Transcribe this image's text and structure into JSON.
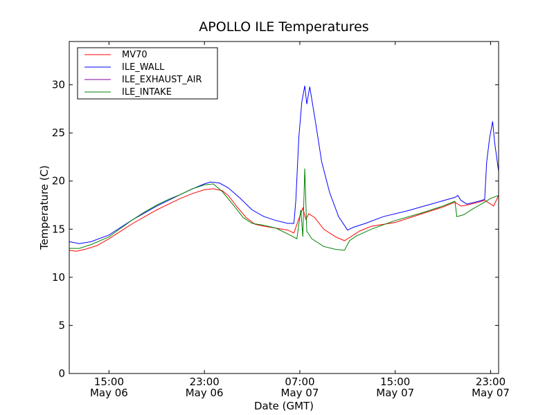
{
  "chart_data": {
    "type": "line",
    "title": "APOLLO ILE Temperatures",
    "xlabel": "Date (GMT)",
    "ylabel": "Temperature (C)",
    "ylim": [
      0,
      34.5
    ],
    "xlim": [
      "2013-05-06 11:40",
      "2013-05-07 23:40"
    ],
    "y_ticks": [
      0,
      5,
      10,
      15,
      20,
      25,
      30
    ],
    "x_ticks": [
      {
        "time": "2013-05-06 15:00",
        "label_time": "15:00",
        "label_date": "May 06"
      },
      {
        "time": "2013-05-06 23:00",
        "label_time": "23:00",
        "label_date": "May 06"
      },
      {
        "time": "2013-05-07 07:00",
        "label_time": "07:00",
        "label_date": "May 07"
      },
      {
        "time": "2013-05-07 15:00",
        "label_time": "15:00",
        "label_date": "May 07"
      },
      {
        "time": "2013-05-07 23:00",
        "label_time": "23:00",
        "label_date": "May 07"
      }
    ],
    "grid": false,
    "legend_position": "top-left",
    "series": [
      {
        "name": "MV70",
        "color": "#ff0000",
        "points": [
          [
            "2013-05-06 11:40",
            12.8
          ],
          [
            "2013-05-06 12:15",
            12.7
          ],
          [
            "2013-05-06 13:00",
            12.9
          ],
          [
            "2013-05-06 14:00",
            13.3
          ],
          [
            "2013-05-06 15:00",
            14.0
          ],
          [
            "2013-05-06 16:00",
            14.8
          ],
          [
            "2013-05-06 17:00",
            15.6
          ],
          [
            "2013-05-06 18:00",
            16.3
          ],
          [
            "2013-05-06 19:00",
            17.0
          ],
          [
            "2013-05-06 20:00",
            17.6
          ],
          [
            "2013-05-06 21:00",
            18.2
          ],
          [
            "2013-05-06 22:00",
            18.7
          ],
          [
            "2013-05-06 23:00",
            19.1
          ],
          [
            "2013-05-06 23:45",
            19.2
          ],
          [
            "2013-05-07 00:30",
            19.0
          ],
          [
            "2013-05-07 01:00",
            18.5
          ],
          [
            "2013-05-07 01:45",
            17.3
          ],
          [
            "2013-05-07 02:30",
            16.2
          ],
          [
            "2013-05-07 03:15",
            15.5
          ],
          [
            "2013-05-07 04:00",
            15.3
          ],
          [
            "2013-05-07 05:00",
            15.1
          ],
          [
            "2013-05-07 06:00",
            14.9
          ],
          [
            "2013-05-07 06:30",
            14.6
          ],
          [
            "2013-05-07 06:45",
            15.5
          ],
          [
            "2013-05-07 07:15",
            17.2
          ],
          [
            "2013-05-07 07:30",
            16.0
          ],
          [
            "2013-05-07 07:45",
            16.6
          ],
          [
            "2013-05-07 08:15",
            16.2
          ],
          [
            "2013-05-07 09:00",
            15.0
          ],
          [
            "2013-05-07 10:00",
            14.2
          ],
          [
            "2013-05-07 10:45",
            13.8
          ],
          [
            "2013-05-07 11:30",
            14.4
          ],
          [
            "2013-05-07 12:00",
            14.8
          ],
          [
            "2013-05-07 13:00",
            15.3
          ],
          [
            "2013-05-07 15:00",
            15.7
          ],
          [
            "2013-05-07 17:00",
            16.5
          ],
          [
            "2013-05-07 19:00",
            17.3
          ],
          [
            "2013-05-07 20:00",
            17.8
          ],
          [
            "2013-05-07 20:30",
            17.4
          ],
          [
            "2013-05-07 21:00",
            17.5
          ],
          [
            "2013-05-07 22:00",
            17.8
          ],
          [
            "2013-05-07 22:30",
            18.0
          ],
          [
            "2013-05-07 23:00",
            17.6
          ],
          [
            "2013-05-07 23:15",
            17.4
          ],
          [
            "2013-05-07 23:40",
            18.5
          ]
        ]
      },
      {
        "name": "ILE_WALL",
        "color": "#0000ff",
        "points": [
          [
            "2013-05-06 11:40",
            13.7
          ],
          [
            "2013-05-06 12:30",
            13.5
          ],
          [
            "2013-05-06 13:30",
            13.7
          ],
          [
            "2013-05-06 15:00",
            14.4
          ],
          [
            "2013-05-06 16:00",
            15.2
          ],
          [
            "2013-05-06 17:00",
            16.0
          ],
          [
            "2013-05-06 18:00",
            16.7
          ],
          [
            "2013-05-06 19:00",
            17.4
          ],
          [
            "2013-05-06 20:00",
            18.0
          ],
          [
            "2013-05-06 21:00",
            18.6
          ],
          [
            "2013-05-06 22:00",
            19.2
          ],
          [
            "2013-05-06 23:00",
            19.7
          ],
          [
            "2013-05-06 23:30",
            19.9
          ],
          [
            "2013-05-07 00:15",
            19.8
          ],
          [
            "2013-05-07 01:00",
            19.3
          ],
          [
            "2013-05-07 02:00",
            18.2
          ],
          [
            "2013-05-07 03:00",
            17.0
          ],
          [
            "2013-05-07 04:00",
            16.3
          ],
          [
            "2013-05-07 05:00",
            15.9
          ],
          [
            "2013-05-07 06:00",
            15.6
          ],
          [
            "2013-05-07 06:30",
            15.6
          ],
          [
            "2013-05-07 06:40",
            18.0
          ],
          [
            "2013-05-07 06:55",
            24.5
          ],
          [
            "2013-05-07 07:10",
            28.2
          ],
          [
            "2013-05-07 07:25",
            29.9
          ],
          [
            "2013-05-07 07:35",
            28.0
          ],
          [
            "2013-05-07 07:50",
            29.8
          ],
          [
            "2013-05-07 08:20",
            26.0
          ],
          [
            "2013-05-07 08:50",
            22.0
          ],
          [
            "2013-05-07 09:30",
            18.8
          ],
          [
            "2013-05-07 10:15",
            16.3
          ],
          [
            "2013-05-07 11:00",
            14.9
          ],
          [
            "2013-05-07 11:30",
            15.2
          ],
          [
            "2013-05-07 12:30",
            15.6
          ],
          [
            "2013-05-07 14:00",
            16.3
          ],
          [
            "2013-05-07 16:00",
            16.9
          ],
          [
            "2013-05-07 18:00",
            17.6
          ],
          [
            "2013-05-07 20:00",
            18.3
          ],
          [
            "2013-05-07 20:15",
            18.5
          ],
          [
            "2013-05-07 20:30",
            18.0
          ],
          [
            "2013-05-07 21:00",
            17.6
          ],
          [
            "2013-05-07 22:00",
            17.9
          ],
          [
            "2013-05-07 22:30",
            18.1
          ],
          [
            "2013-05-07 22:40",
            22.0
          ],
          [
            "2013-05-07 22:55",
            24.5
          ],
          [
            "2013-05-07 23:10",
            26.2
          ],
          [
            "2013-05-07 23:20",
            24.0
          ],
          [
            "2013-05-07 23:40",
            21.0
          ]
        ]
      },
      {
        "name": "ILE_EXHAUST_AIR",
        "color": "#8000a0",
        "points": []
      },
      {
        "name": "ILE_INTAKE",
        "color": "#008000",
        "points": [
          [
            "2013-05-06 11:40",
            13.0
          ],
          [
            "2013-05-06 12:30",
            13.0
          ],
          [
            "2013-05-06 13:30",
            13.4
          ],
          [
            "2013-05-06 15:00",
            14.2
          ],
          [
            "2013-05-06 16:00",
            15.1
          ],
          [
            "2013-05-06 17:00",
            16.0
          ],
          [
            "2013-05-06 18:00",
            16.8
          ],
          [
            "2013-05-06 19:00",
            17.5
          ],
          [
            "2013-05-06 20:00",
            18.1
          ],
          [
            "2013-05-06 21:00",
            18.6
          ],
          [
            "2013-05-06 22:00",
            19.2
          ],
          [
            "2013-05-06 23:00",
            19.6
          ],
          [
            "2013-05-06 23:45",
            19.7
          ],
          [
            "2013-05-07 00:30",
            18.9
          ],
          [
            "2013-05-07 01:30",
            17.4
          ],
          [
            "2013-05-07 02:15",
            16.2
          ],
          [
            "2013-05-07 03:00",
            15.6
          ],
          [
            "2013-05-07 04:00",
            15.4
          ],
          [
            "2013-05-07 05:00",
            15.1
          ],
          [
            "2013-05-07 06:00",
            14.5
          ],
          [
            "2013-05-07 06:45",
            14.0
          ],
          [
            "2013-05-07 07:05",
            17.0
          ],
          [
            "2013-05-07 07:15",
            14.2
          ],
          [
            "2013-05-07 07:25",
            21.3
          ],
          [
            "2013-05-07 07:35",
            14.8
          ],
          [
            "2013-05-07 08:00",
            14.0
          ],
          [
            "2013-05-07 09:00",
            13.2
          ],
          [
            "2013-05-07 10:00",
            12.9
          ],
          [
            "2013-05-07 10:45",
            12.8
          ],
          [
            "2013-05-07 11:10",
            13.8
          ],
          [
            "2013-05-07 11:45",
            14.3
          ],
          [
            "2013-05-07 13:00",
            15.0
          ],
          [
            "2013-05-07 15:00",
            15.9
          ],
          [
            "2013-05-07 17:00",
            16.6
          ],
          [
            "2013-05-07 19:00",
            17.4
          ],
          [
            "2013-05-07 20:00",
            17.9
          ],
          [
            "2013-05-07 20:10",
            16.3
          ],
          [
            "2013-05-07 20:45",
            16.5
          ],
          [
            "2013-05-07 21:30",
            17.1
          ],
          [
            "2013-05-07 22:30",
            17.8
          ],
          [
            "2013-05-07 23:00",
            18.2
          ],
          [
            "2013-05-07 23:40",
            18.5
          ]
        ]
      }
    ]
  }
}
